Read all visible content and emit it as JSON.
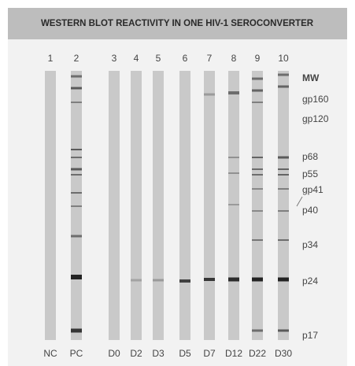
{
  "title": "WESTERN BLOT REACTIVITY IN ONE HIV-1 SEROCONVERTER",
  "lanes": [
    {
      "number": "1",
      "label": "NC"
    },
    {
      "number": "2",
      "label": "PC"
    },
    {
      "number": "3",
      "label": "D0"
    },
    {
      "number": "4",
      "label": "D2"
    },
    {
      "number": "5",
      "label": "D3"
    },
    {
      "number": "6",
      "label": "D5"
    },
    {
      "number": "7",
      "label": "D7"
    },
    {
      "number": "8",
      "label": "D12"
    },
    {
      "number": "9",
      "label": "D22"
    },
    {
      "number": "10",
      "label": "D30"
    }
  ],
  "markers": [
    "MW",
    "gp160",
    "gp120",
    "p68",
    "p55",
    "gp41",
    "p40",
    "p34",
    "p24",
    "p17"
  ]
}
